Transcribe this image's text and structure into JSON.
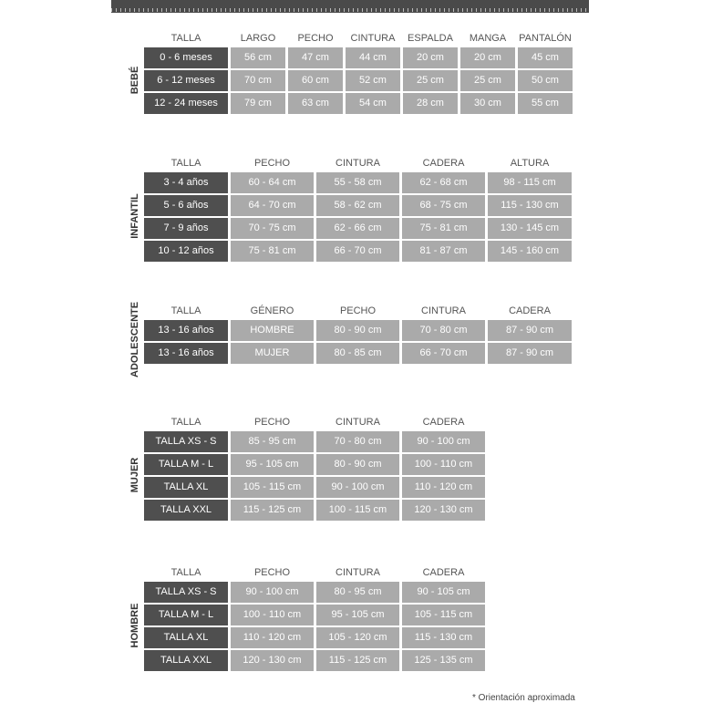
{
  "sections": [
    {
      "label": "BEBÉ",
      "headers": [
        "TALLA",
        "LARGO",
        "PECHO",
        "CINTURA",
        "ESPALDA",
        "MANGA",
        "PANTALÓN"
      ],
      "rows": [
        [
          "0 - 6 meses",
          "56 cm",
          "47 cm",
          "44 cm",
          "20 cm",
          "20 cm",
          "45 cm"
        ],
        [
          "6 - 12 meses",
          "70 cm",
          "60 cm",
          "52 cm",
          "25 cm",
          "25 cm",
          "50 cm"
        ],
        [
          "12 - 24 meses",
          "79 cm",
          "63 cm",
          "54 cm",
          "28 cm",
          "30 cm",
          "55 cm"
        ]
      ]
    },
    {
      "label": "INFANTIL",
      "headers": [
        "TALLA",
        "PECHO",
        "CINTURA",
        "CADERA",
        "ALTURA"
      ],
      "rows": [
        [
          "3 - 4 años",
          "60 - 64 cm",
          "55 - 58 cm",
          "62 - 68 cm",
          "98 - 115 cm"
        ],
        [
          "5 - 6 años",
          "64 - 70 cm",
          "58 - 62 cm",
          "68 - 75 cm",
          "115 - 130 cm"
        ],
        [
          "7 - 9 años",
          "70 - 75 cm",
          "62 - 66 cm",
          "75 - 81 cm",
          "130 - 145 cm"
        ],
        [
          "10 - 12 años",
          "75 - 81 cm",
          "66 - 70 cm",
          "81 - 87 cm",
          "145 - 160 cm"
        ]
      ]
    },
    {
      "label": "ADOLESCENTE",
      "headers": [
        "TALLA",
        "GÉNERO",
        "PECHO",
        "CINTURA",
        "CADERA"
      ],
      "rows": [
        [
          "13 - 16 años",
          "HOMBRE",
          "80 - 90 cm",
          "70 - 80 cm",
          "87 - 90 cm"
        ],
        [
          "13 - 16 años",
          "MUJER",
          "80 - 85 cm",
          "66 - 70 cm",
          "87 - 90 cm"
        ]
      ]
    },
    {
      "label": "MUJER",
      "headers": [
        "TALLA",
        "PECHO",
        "CINTURA",
        "CADERA"
      ],
      "rows": [
        [
          "TALLA XS - S",
          "85 - 95 cm",
          "70 - 80 cm",
          "90 - 100 cm"
        ],
        [
          "TALLA M - L",
          "95 - 105 cm",
          "80 - 90 cm",
          "100 - 110 cm"
        ],
        [
          "TALLA XL",
          "105 - 115 cm",
          "90 - 100 cm",
          "110 - 120 cm"
        ],
        [
          "TALLA XXL",
          "115 - 125 cm",
          "100 - 115 cm",
          "120 - 130 cm"
        ]
      ]
    },
    {
      "label": "HOMBRE",
      "headers": [
        "TALLA",
        "PECHO",
        "CINTURA",
        "CADERA"
      ],
      "rows": [
        [
          "TALLA XS - S",
          "90 - 100 cm",
          "80 - 95 cm",
          "90 - 105 cm"
        ],
        [
          "TALLA M - L",
          "100 - 110 cm",
          "95 - 105 cm",
          "105 - 115 cm"
        ],
        [
          "TALLA XL",
          "110 - 120 cm",
          "105 - 120 cm",
          "115 - 130 cm"
        ],
        [
          "TALLA XXL",
          "120 - 130 cm",
          "115 - 125 cm",
          "125 - 135 cm"
        ]
      ]
    }
  ],
  "footnote": "* Orientación aproximada",
  "colors": {
    "talla_cell": "#4f4f4f",
    "value_cell": "#aaaaaa",
    "ruler": "#4a4a4a"
  }
}
